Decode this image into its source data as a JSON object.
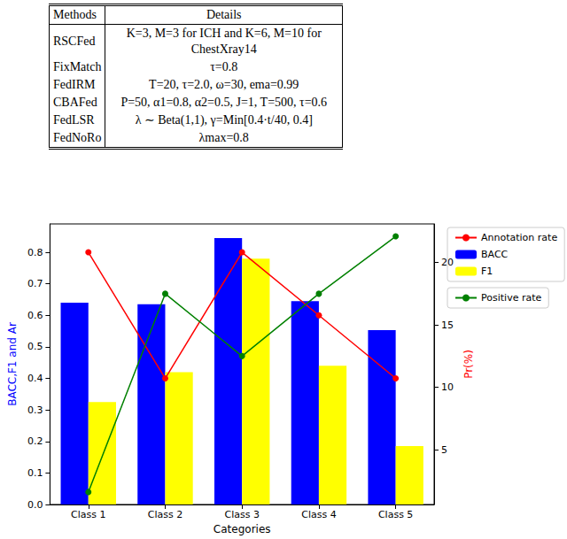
{
  "table": {
    "header": [
      "Methods",
      "Details"
    ],
    "rows": [
      [
        "RSCFed",
        "K=3, M=3 for ICH and K=6, M=10 for ChestXray14"
      ],
      [
        "FixMatch",
        "τ=0.8"
      ],
      [
        "FedIRM",
        "T=20, τ=2.0, ω=30, ema=0.99"
      ],
      [
        "CBAFed",
        "P=50, α1=0.8, α2=0.5, J=1, T=500, τ=0.6"
      ],
      [
        "FedLSR",
        "λ ∼ Beta(1,1), γ=Min[0.4·t/40, 0.4]"
      ],
      [
        "FedNoRo",
        "λmax=0.8"
      ]
    ]
  },
  "chart_data": {
    "type": "bar",
    "x_label": "Categories",
    "y_label": "BACC,F1 and Ar",
    "y2_label": "Pr(%)",
    "categories": [
      "Class 1",
      "Class 2",
      "Class 3",
      "Class 4",
      "Class 5"
    ],
    "series": [
      {
        "name": "Annotation rate",
        "type": "line",
        "color": "#ff0000",
        "marker": "circle",
        "values": [
          0.8,
          0.4,
          0.8,
          0.6,
          0.4
        ]
      },
      {
        "name": "BACC",
        "type": "bar",
        "color": "#0000ff",
        "values": [
          0.64,
          0.635,
          0.845,
          0.645,
          0.553
        ]
      },
      {
        "name": "F1",
        "type": "bar",
        "color": "#ffff00",
        "values": [
          0.325,
          0.42,
          0.78,
          0.44,
          0.185
        ]
      },
      {
        "name": "Positive rate",
        "type": "line",
        "color": "#008000",
        "marker": "circle",
        "axis": "y2",
        "values": [
          1.6,
          17.5,
          12.5,
          17.5,
          22.1
        ]
      }
    ],
    "ylim": [
      0,
      0.89
    ],
    "yticks": [
      {
        "value": 0,
        "label": "0.0"
      },
      0.1,
      0.2,
      0.3,
      0.4,
      0.5,
      0.6,
      0.7,
      0.8
    ],
    "y2lim": [
      0.6,
      23.1
    ],
    "y2ticks": [
      5,
      10,
      15,
      20
    ],
    "grid": false
  }
}
